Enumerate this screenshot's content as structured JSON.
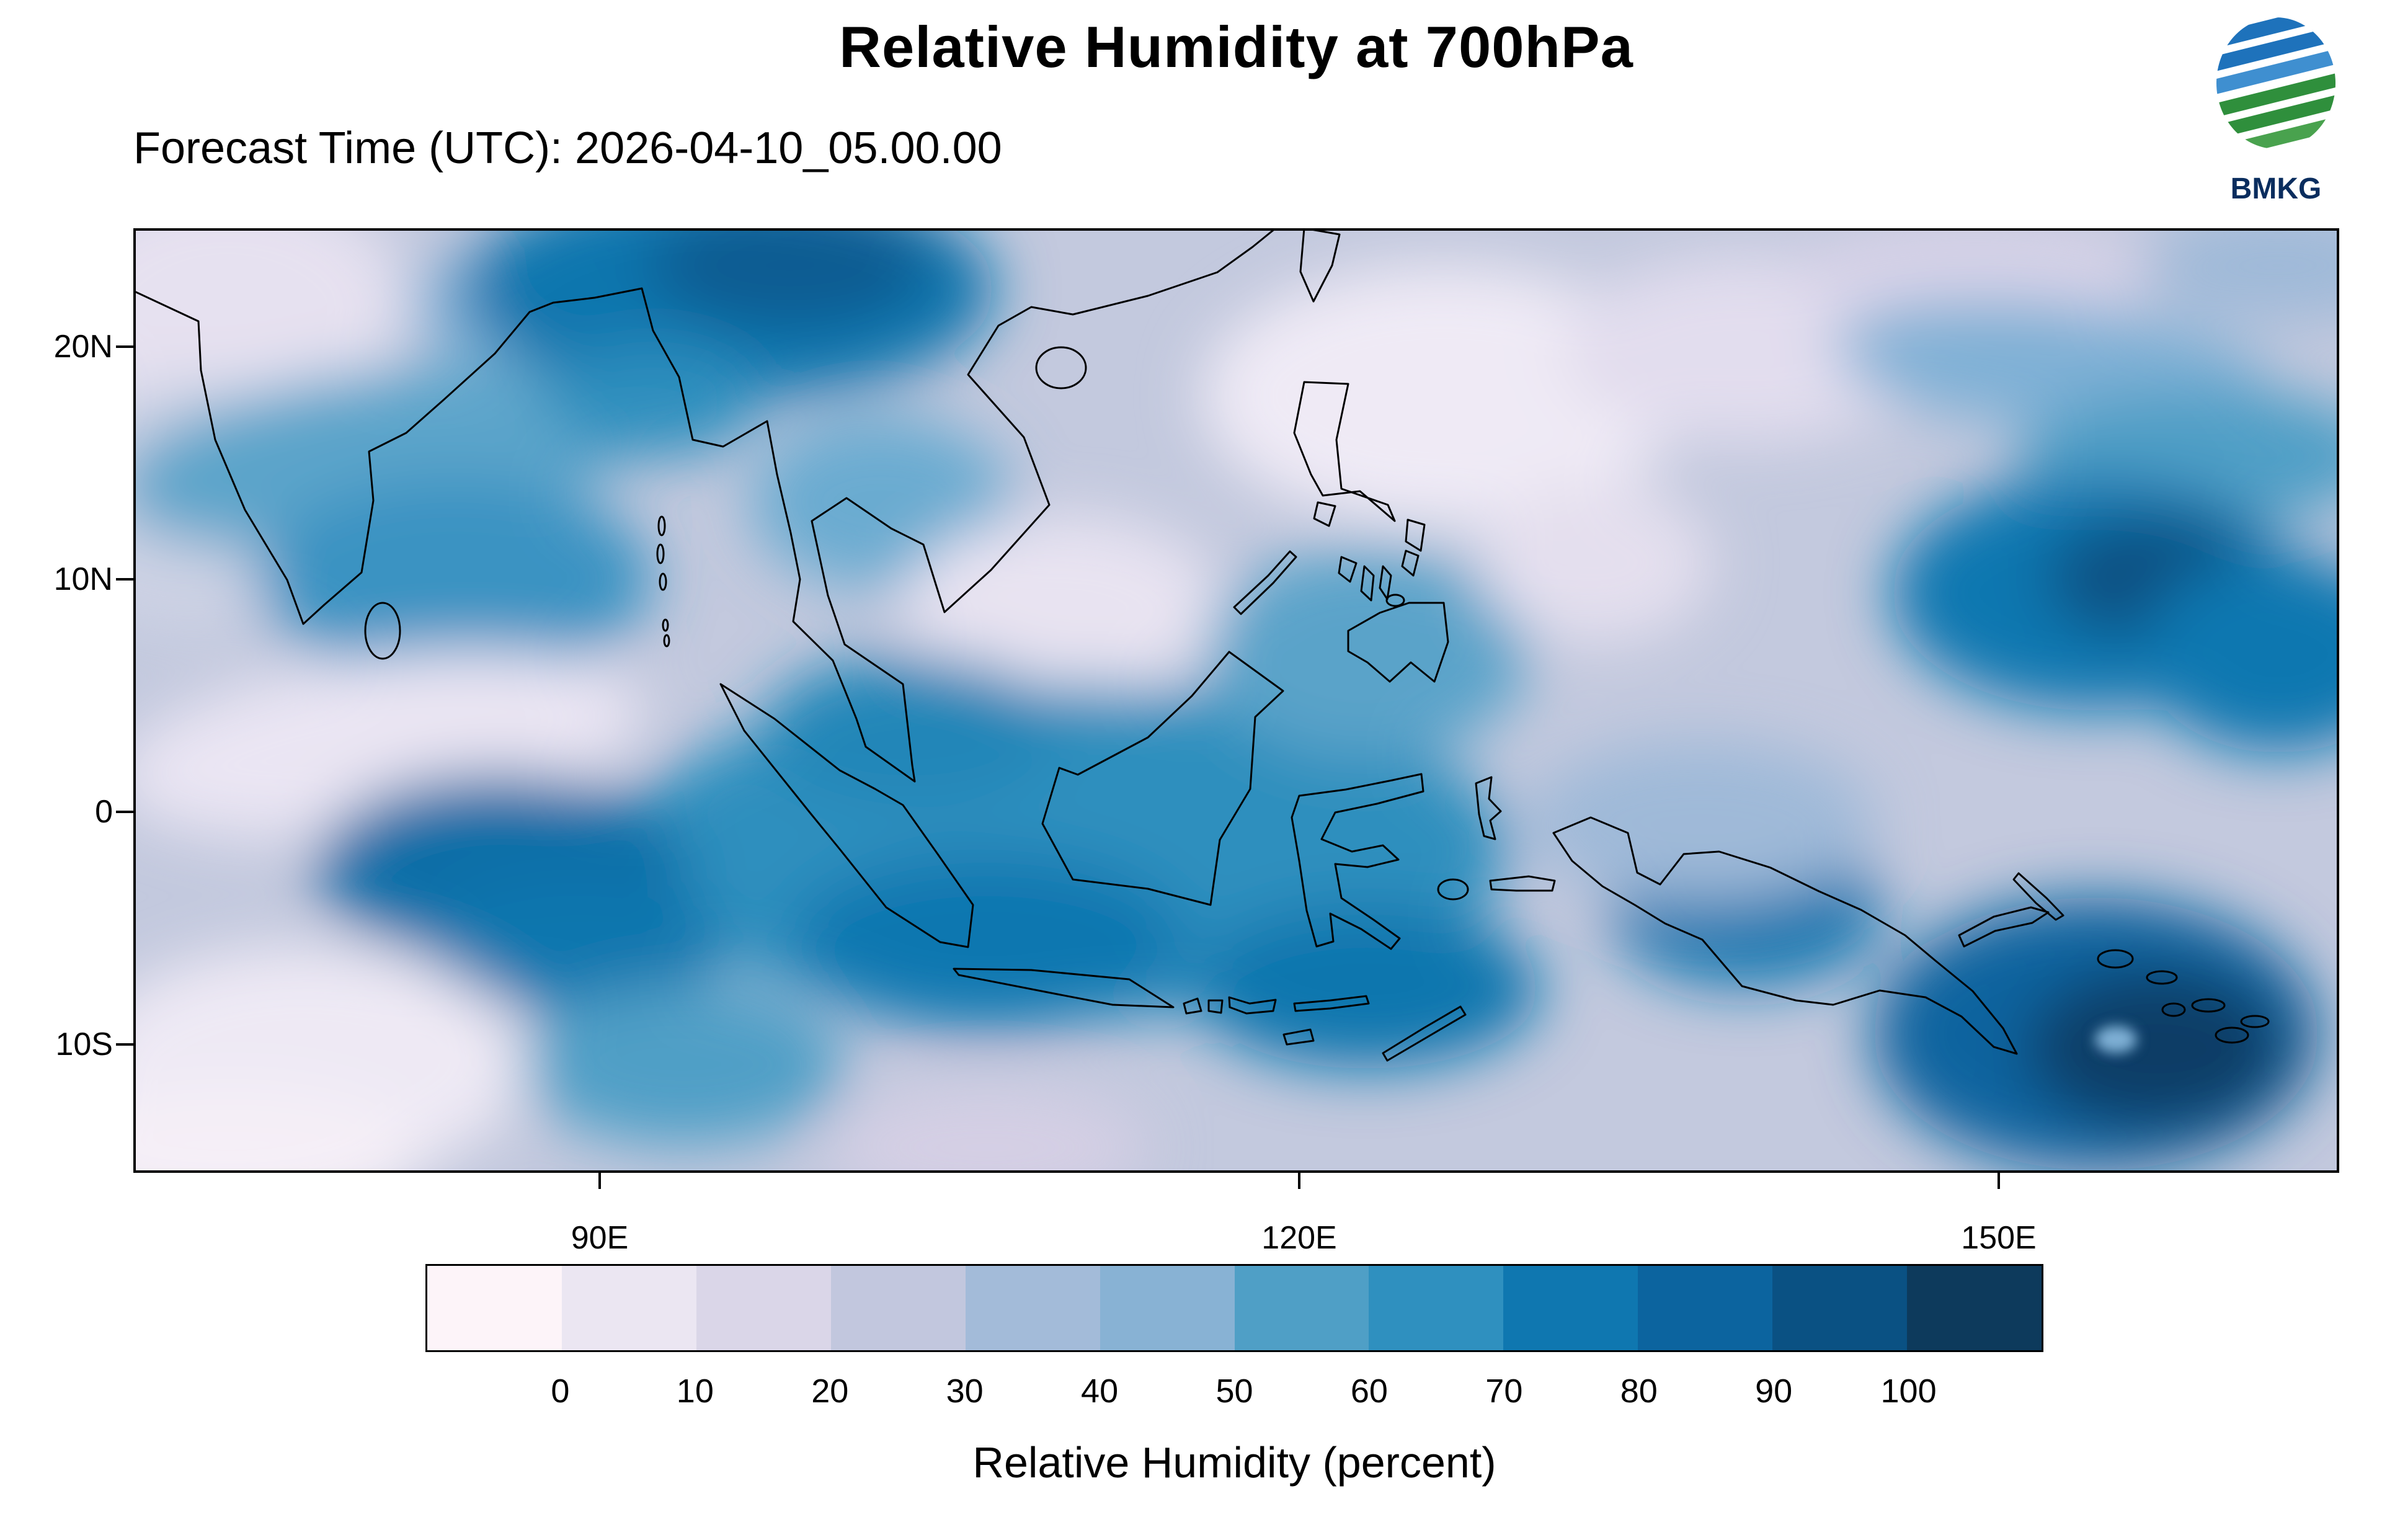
{
  "header": {
    "title": "Relative Humidity at 700hPa",
    "forecast_time": "Forecast Time (UTC): 2026-04-10_05.00.00"
  },
  "logo": {
    "text": "BMKG"
  },
  "axes": {
    "y_labels": [
      "20N",
      "10N",
      "0",
      "10S"
    ],
    "x_labels": [
      "90E",
      "120E",
      "150E"
    ]
  },
  "colorbar": {
    "tick_labels": [
      "0",
      "10",
      "20",
      "30",
      "40",
      "50",
      "60",
      "70",
      "80",
      "90",
      "100"
    ],
    "caption": "Relative Humidity (percent)",
    "colors": [
      "#fdf4f9",
      "#ebe6f2",
      "#dad6e8",
      "#c2c7de",
      "#a3bbd9",
      "#88b2d4",
      "#4f9fc6",
      "#2f90bf",
      "#0f77b0",
      "#0c649f",
      "#0a5183",
      "#0d3a5c"
    ]
  },
  "chart_data": {
    "type": "heatmap",
    "title": "Relative Humidity at 700hPa",
    "subtitle": "Forecast Time (UTC): 2026-04-10_05.00.00",
    "variable": "Relative Humidity (percent)",
    "levels": [
      0,
      10,
      20,
      30,
      40,
      50,
      60,
      70,
      80,
      90,
      100
    ],
    "palette": [
      "#fdf4f9",
      "#ebe6f2",
      "#dad6e8",
      "#c2c7de",
      "#a3bbd9",
      "#88b2d4",
      "#4f9fc6",
      "#2f90bf",
      "#0f77b0",
      "#0c649f",
      "#0a5183",
      "#0d3a5c"
    ],
    "x_tick_labels": [
      "90E",
      "120E",
      "150E"
    ],
    "y_tick_labels": [
      "20N",
      "10N",
      "0",
      "10S"
    ],
    "colorbar_position": "bottom",
    "source": "BMKG"
  }
}
